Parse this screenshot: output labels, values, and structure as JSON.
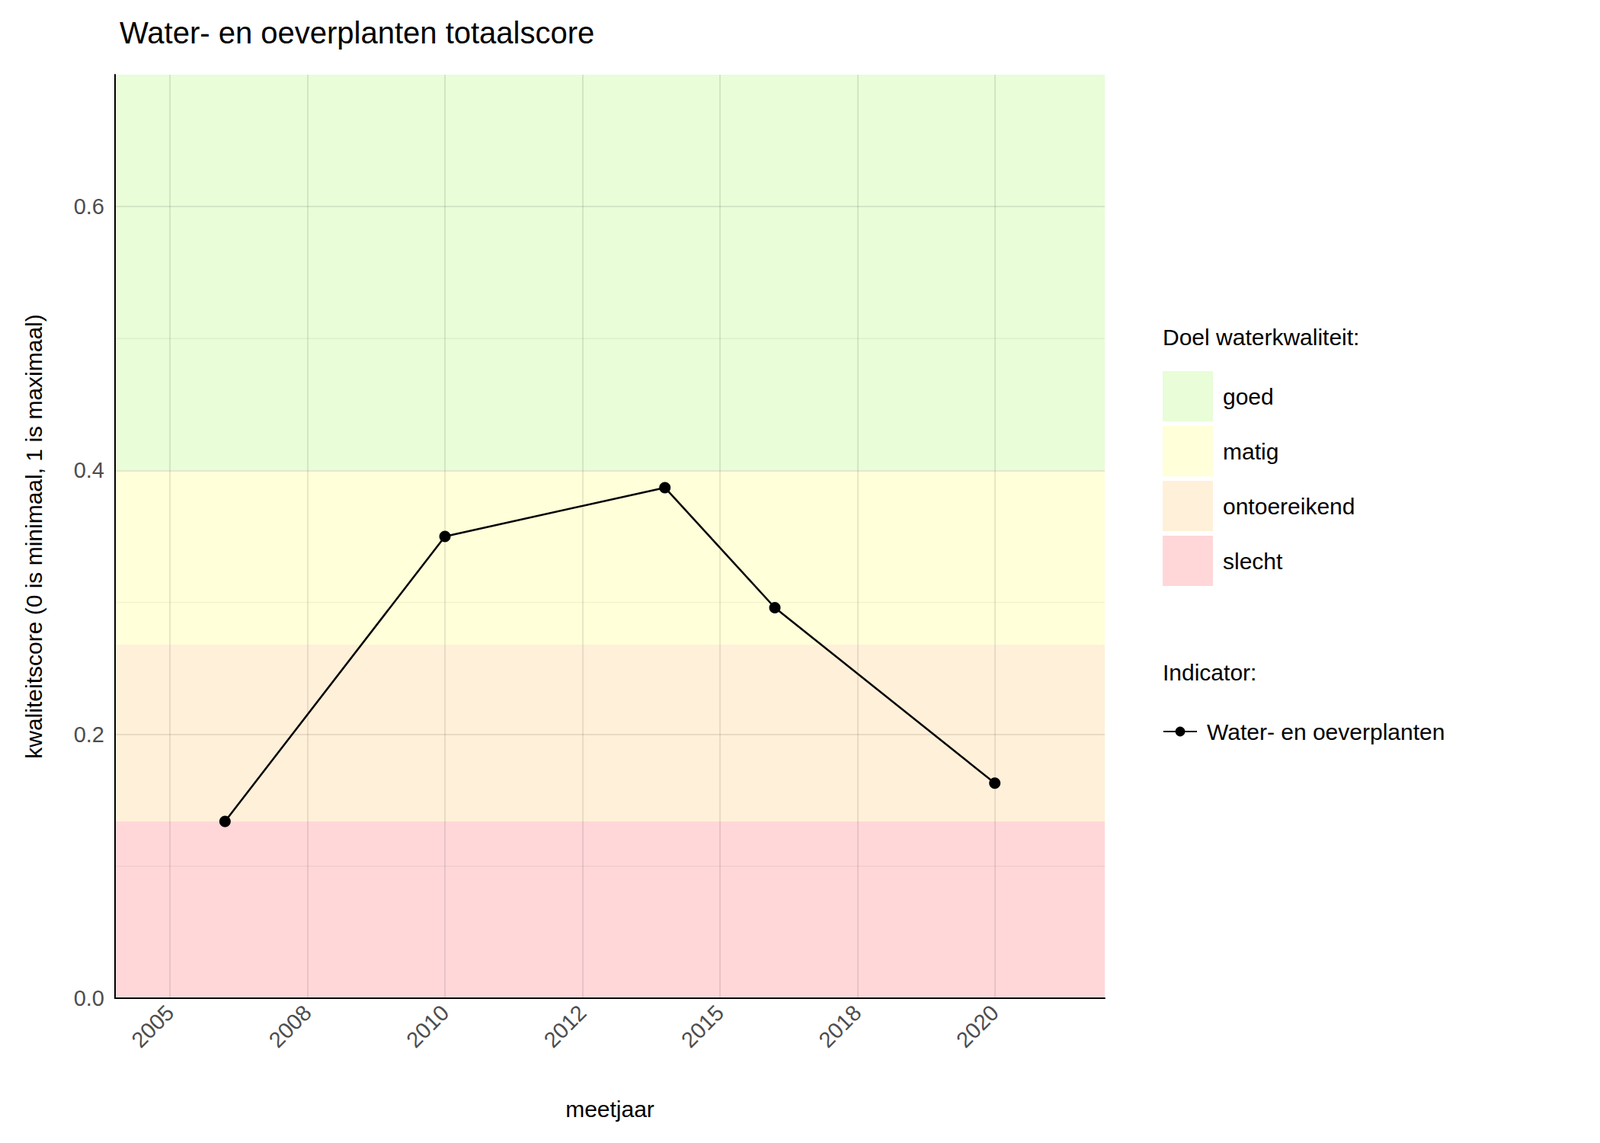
{
  "chart_data": {
    "type": "line",
    "title": "Water- en oeverplanten totaalscore",
    "x_label": "meetjaar",
    "y_label": "kwaliteitscore (0 is minimaal, 1 is maximaal)",
    "x": [
      2006,
      2010,
      2014,
      2016,
      2020
    ],
    "series": [
      {
        "name": "Water- en oeverplanten",
        "color": "#000000",
        "marker": "circle",
        "line_style": "solid",
        "values": [
          0.134,
          0.35,
          0.387,
          0.296,
          0.163
        ]
      }
    ],
    "xlim": [
      2004,
      2022
    ],
    "xticks": [
      2005,
      {
        "value": 2007.5,
        "label": "2008"
      },
      2010,
      {
        "value": 2012.5,
        "label": "2012"
      },
      2015,
      {
        "value": 2017.5,
        "label": "2018"
      },
      2020
    ],
    "ylim": [
      0,
      0.7
    ],
    "yticks": [
      {
        "value": 0,
        "label": "0.0"
      },
      0.2,
      0.4,
      0.6
    ],
    "grid": true,
    "legend": "right",
    "band_legend_title": "Doel waterkwaliteit:",
    "series_legend_title": "Indicator:",
    "bands": [
      {
        "name": "goed",
        "color": "#e8fdd8",
        "from": 0.4,
        "to": 0.7
      },
      {
        "name": "matig",
        "color": "#ffffd9",
        "from": 0.268,
        "to": 0.4
      },
      {
        "name": "ontoereikend",
        "color": "#fff0d9",
        "from": 0.134,
        "to": 0.268
      },
      {
        "name": "slecht",
        "color": "#ffd7d9",
        "from": 0,
        "to": 0.134
      }
    ]
  }
}
